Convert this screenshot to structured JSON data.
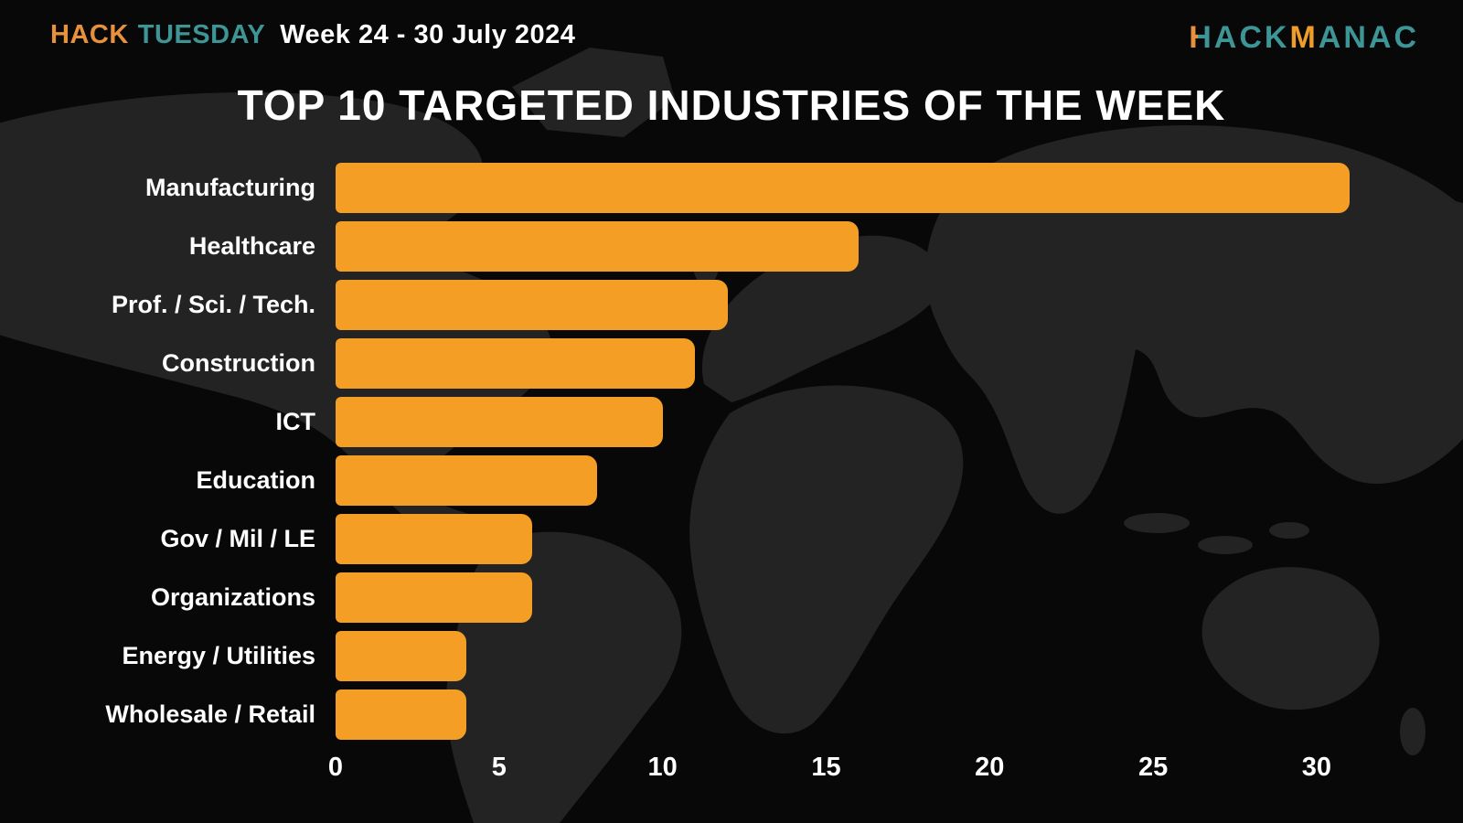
{
  "header": {
    "brand_hack": "HACK",
    "brand_tuesday": "TUESDAY",
    "week": "Week 24 - 30 July 2024",
    "logo": {
      "part1": "HACK",
      "part2": "M",
      "part3": "ANAC"
    }
  },
  "title": "TOP 10 TARGETED INDUSTRIES OF THE WEEK",
  "colors": {
    "background": "#080808",
    "map_silhouette": "#232323",
    "bar_orange": "#F59E26",
    "accent_orange": "#E8913C",
    "accent_teal": "#3D9596",
    "text_white": "#FFFFFF"
  },
  "chart_data": {
    "type": "bar",
    "orientation": "horizontal",
    "title": "TOP 10 TARGETED INDUSTRIES OF THE WEEK",
    "categories": [
      "Manufacturing",
      "Healthcare",
      "Prof. / Sci. / Tech.",
      "Construction",
      "ICT",
      "Education",
      "Gov / Mil / LE",
      "Organizations",
      "Energy / Utilities",
      "Wholesale / Retail"
    ],
    "values": [
      31,
      16,
      12,
      11,
      10,
      8,
      6,
      6,
      4,
      4
    ],
    "xlabel": "",
    "ylabel": "",
    "xlim": [
      0,
      31.4
    ],
    "x_ticks": [
      0,
      5,
      10,
      15,
      20,
      25,
      30
    ],
    "grid": false,
    "legend": false,
    "bar_color": "#F59E26"
  }
}
